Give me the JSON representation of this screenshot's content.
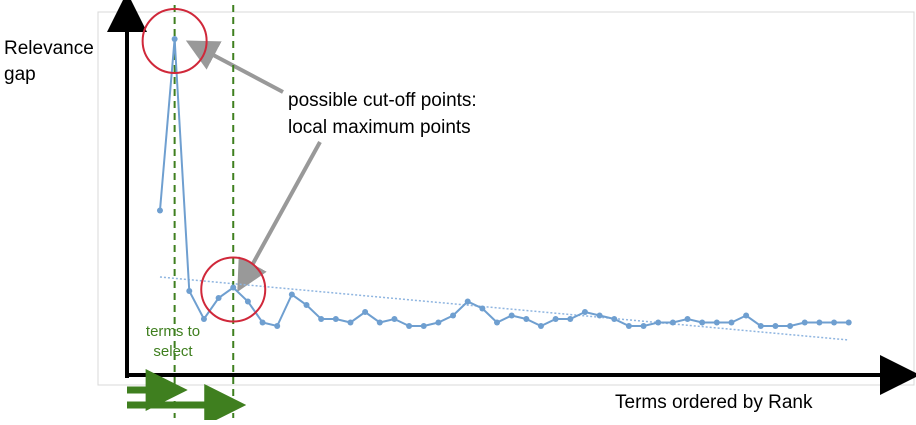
{
  "chart_data": {
    "type": "line",
    "y_label": [
      "Relevance",
      "gap"
    ],
    "x_label": "Terms ordered by Rank",
    "annotation": [
      "possible cut-off points:",
      "local maximum points"
    ],
    "selection_label": [
      "terms to",
      "select"
    ],
    "xlim": [
      -1.25,
      51.5
    ],
    "ylim": [
      0,
      100
    ],
    "series": [
      {
        "color": "#6f9fd0",
        "x": [
          1,
          2,
          3,
          4,
          5,
          6,
          7,
          8,
          9,
          10,
          11,
          12,
          13,
          14,
          15,
          16,
          17,
          18,
          19,
          20,
          21,
          22,
          23,
          24,
          25,
          26,
          27,
          28,
          29,
          30,
          31,
          32,
          33,
          34,
          35,
          36,
          37,
          38,
          39,
          40,
          41,
          42,
          43,
          44,
          45,
          46,
          47,
          48
        ],
        "values": [
          47,
          96,
          24,
          16,
          22,
          25,
          21,
          15,
          14,
          23,
          20,
          16,
          16,
          15,
          18,
          15,
          16,
          14,
          14,
          15,
          17,
          21,
          19,
          15,
          17,
          16,
          14,
          16,
          16,
          18,
          17,
          16,
          14,
          14,
          15,
          15,
          16,
          15,
          15,
          15,
          17,
          14,
          14,
          14,
          15,
          15,
          15,
          15
        ]
      }
    ],
    "trend": {
      "color": "#8fb5e0",
      "x": [
        1,
        48
      ],
      "values": [
        28,
        10
      ]
    },
    "cutoffs": [
      2,
      6
    ],
    "cutoff_color": "#3f7f1f",
    "circle_color": "#d0283a"
  }
}
